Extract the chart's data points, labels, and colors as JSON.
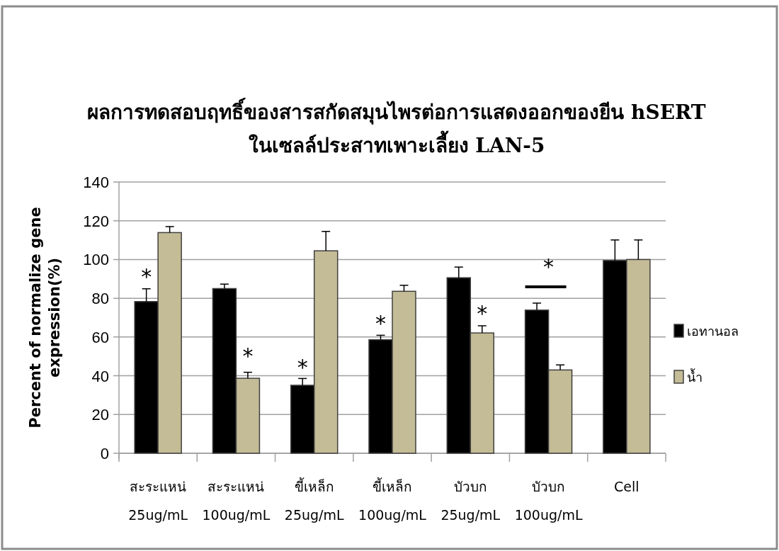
{
  "chart_data": {
    "type": "bar",
    "title": "ผลการทดสอบฤทธิ์ของสารสกัดสมุนไพรต่อการแสดงออกของยีน hSERT\nในเซลล์ประสาทเพาะเลี้ยง LAN-5",
    "ylabel": "Percent of normalize gene\nexpression(%)",
    "categories": [
      "สะระแหน่\n25ug/mL",
      "สะระแหน่\n100ug/mL",
      "ขี้เหล็ก\n25ug/mL",
      "ขี้เหล็ก\n100ug/mL",
      "บัวบก\n25ug/mL",
      "บัวบก\n100ug/mL",
      "Cell"
    ],
    "series": [
      {
        "name": "เอทานอล",
        "color": "#000000",
        "values": [
          78.3,
          85.0,
          35.1,
          58.6,
          90.6,
          73.9,
          99.5
        ],
        "errors": [
          6.6,
          2.3,
          3.5,
          2.3,
          5.5,
          3.6,
          10.6
        ]
      },
      {
        "name": "น้ำ",
        "color": "#c4bc96",
        "values": [
          113.9,
          38.7,
          104.5,
          83.6,
          62.1,
          43.0,
          100
        ],
        "errors": [
          3.1,
          3.1,
          10.0,
          3.1,
          3.7,
          2.6,
          10.1
        ]
      }
    ],
    "ylim": [
      0,
      140
    ],
    "yticks": [
      0,
      20,
      40,
      60,
      80,
      100,
      120,
      140
    ],
    "grid": "y",
    "legend": "right",
    "annotations": [
      {
        "text": "*",
        "x": "สะระแหน่\n25ug/mL",
        "y": 92.6
      },
      {
        "text": "*",
        "x": "สะระแหน่\n100ug/mL",
        "y": 51.4
      },
      {
        "text": "*",
        "x": "ขี้เหล็ก\n25ug/mL",
        "y": 45.7
      },
      {
        "text": "*",
        "x": "ขี้เหล็ก\n100ug/mL",
        "y": 68.2
      },
      {
        "text": "*",
        "x": "บัวบก\n25ug/mL",
        "y": 73.3
      },
      "*"
    ]
  }
}
